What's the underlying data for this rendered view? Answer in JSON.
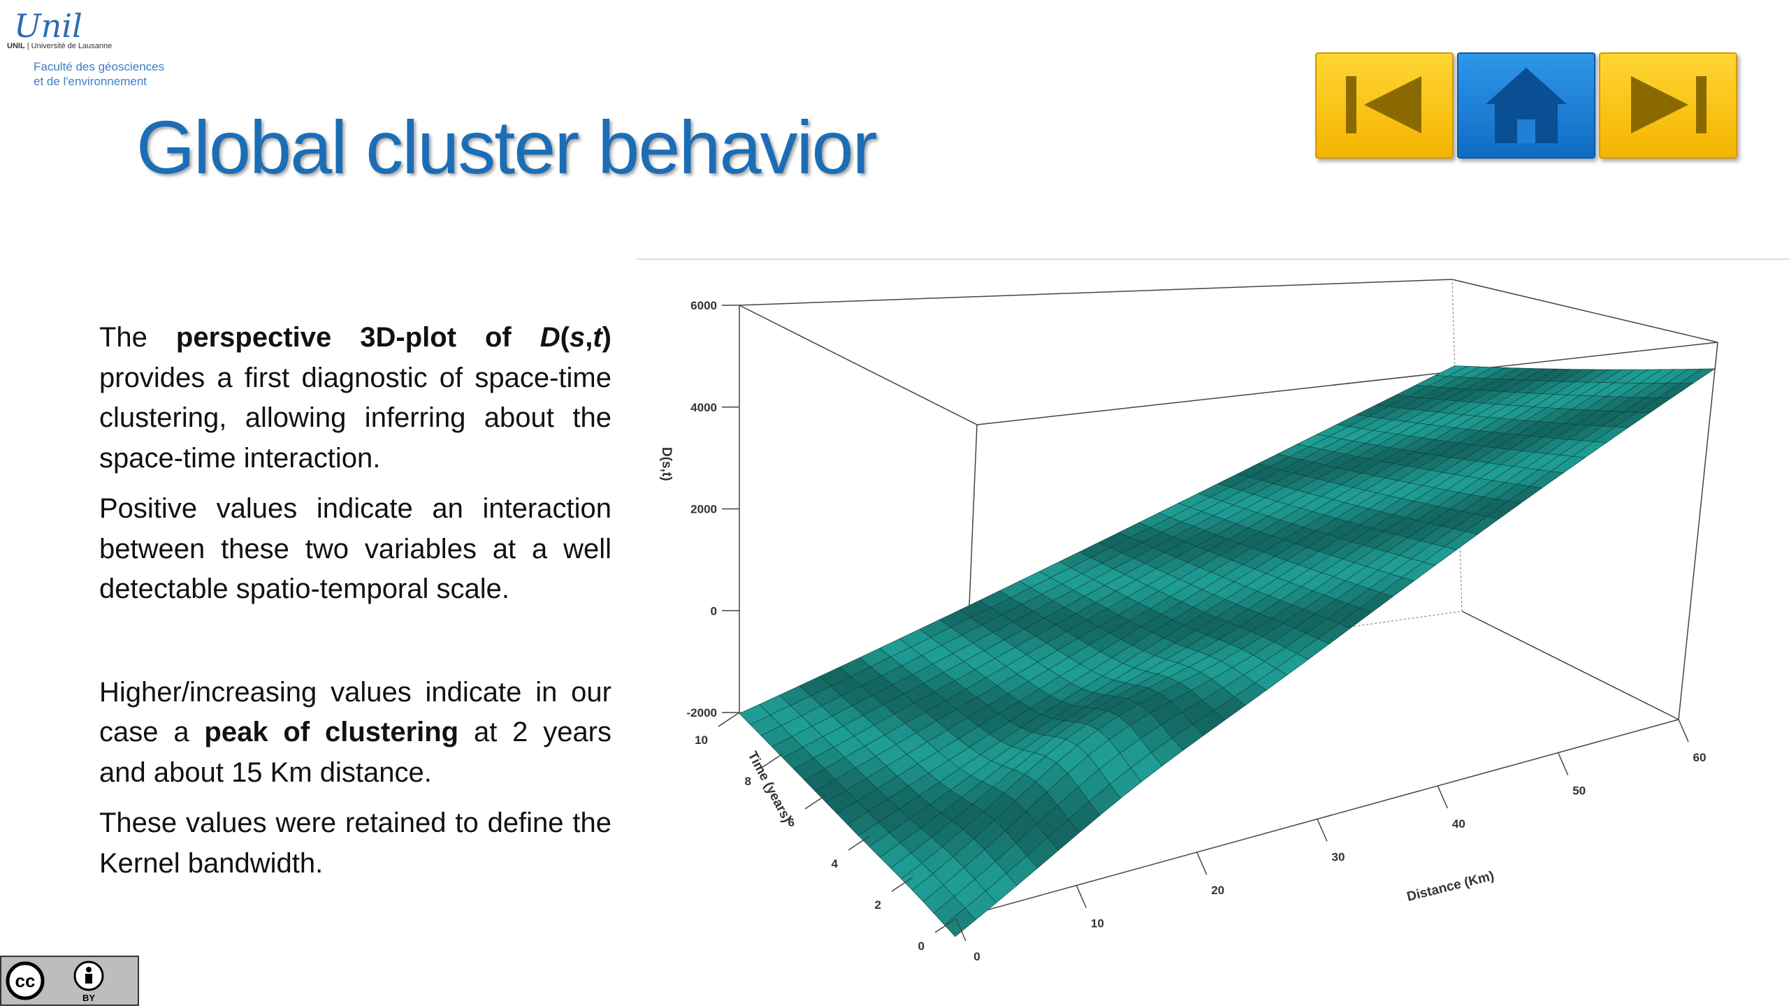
{
  "logo": {
    "script": "Unil",
    "unil": "UNIL",
    "university": "Université de Lausanne",
    "faculty_line1": "Faculté des géosciences",
    "faculty_line2": "et de l'environnement"
  },
  "title": "Global cluster behavior",
  "nav": {
    "prev": "previous-icon",
    "home": "home-icon",
    "next": "next-icon"
  },
  "paragraphs": {
    "p1": {
      "pre": "The ",
      "bold": "perspective 3D-plot of ",
      "ital1": "D",
      "p_open": "(",
      "ital2": "s",
      "comma": ",",
      "ital3": "t",
      "p_close": ")",
      "post": " provides a first diagnostic of space-time clustering, allowing inferring about the space-time interaction."
    },
    "p2": "Positive values indicate an interaction between these two variables at a well detectable spatio-temporal scale.",
    "p3": {
      "pre": "Higher/increasing values indicate in our case a ",
      "bold": "peak of clustering",
      "post": " at 2 years and about 15 Km distance."
    },
    "p4": "These values were retained to define the Kernel bandwidth."
  },
  "license": {
    "cc": "cc",
    "by": "BY",
    "by_icon": "person-icon"
  },
  "colors": {
    "surface": "#1f9e95",
    "title": "#1b6db6",
    "nav_yellow": "#f4b400",
    "nav_blue": "#0f6cc4"
  },
  "chart_data": {
    "type": "surface",
    "zlabel": "D(s,t)",
    "xlabel": "Distance (Km)",
    "ylabel": "Time (years)",
    "x_ticks": [
      "0",
      "10",
      "20",
      "30",
      "40",
      "50",
      "60"
    ],
    "y_ticks": [
      "0",
      "2",
      "4",
      "6",
      "8",
      "10"
    ],
    "z_ticks": [
      "-2000",
      "0",
      "2000",
      "4000",
      "6000"
    ],
    "xlim": [
      0,
      60
    ],
    "ylim": [
      0,
      10
    ],
    "zlim": [
      -2000,
      6000
    ]
  }
}
